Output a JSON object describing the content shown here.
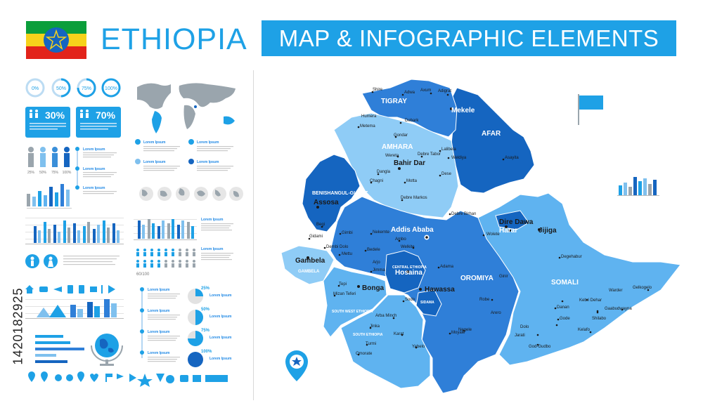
{
  "header": {
    "country_title": "ETHIOPIA",
    "banner_title": "MAP & INFOGRAPHIC ELEMENTS"
  },
  "stock_id": "1420182925",
  "colors": {
    "accent": "#1ea1e6",
    "dark_blue": "#1565c0",
    "mid_blue": "#2f7fd8",
    "light_blue": "#5fb3f0",
    "pale_blue": "#8fccf6",
    "flag_green": "#0b9e3b",
    "flag_yellow": "#f6d21b",
    "flag_red": "#e2231a"
  },
  "infographics": {
    "percent_circles": [
      "0%",
      "50%",
      "75%",
      "100%"
    ],
    "people_stats": [
      {
        "value": "30%"
      },
      {
        "value": "70%"
      }
    ],
    "people_scale": [
      "25%",
      "50%",
      "75%",
      "100%"
    ],
    "lorem_label": "Lorem Ipsum",
    "ratio_label": "60/100",
    "pie_percents": [
      "25%",
      "50%",
      "75%",
      "100%"
    ]
  },
  "map": {
    "regions": [
      "TIGRAY",
      "AFAR",
      "AMHARA",
      "BENISHANGUL-GUMUZ",
      "GAMBELA",
      "OROMIYA",
      "SOMALI",
      "CENTRAL ETHIOPIA",
      "SIDAMA",
      "SOUTH WEST ETHIOPIA",
      "SOUTH ETHIOPIA"
    ],
    "capital": "Addis Ababa",
    "major_cities": [
      "Mekele",
      "Bahir Dar",
      "Dire Dawa",
      "Harar",
      "Bonga",
      "Hawassa",
      "Gambela",
      "Assosa",
      "Hosaina",
      "Jijiga"
    ],
    "cities": [
      "Shire",
      "Adwa",
      "Axum",
      "Adigrat",
      "Humera",
      "Metema",
      "Debark",
      "Gondar",
      "Lalibela",
      "Weldiya",
      "Debre Tabor",
      "Wereta",
      "Dangla",
      "Chagni",
      "Motta",
      "Dese",
      "Debre Markos",
      "Debre Birhan",
      "Asayita",
      "Begi",
      "Dembi Dolo",
      "Gidami",
      "Mettu",
      "Nekemte",
      "Gimbi",
      "Bedele",
      "Jimma",
      "Ambo",
      "Tepi",
      "Mizan Teferi",
      "Sodo",
      "Arba Minch",
      "Jinka",
      "Turmi",
      "Omorate",
      "Karat",
      "Yabelo",
      "Moyale",
      "Negele",
      "Robe",
      "Adama",
      "Welkite",
      "Degehabur",
      "Gode",
      "Kebri Dehar",
      "Warder",
      "Shilabo",
      "Jarati",
      "God-Gudbo",
      "Dolo",
      "Kelafo",
      "Gaabudwayna",
      "Gelkogelo",
      "Danan",
      "Arero",
      "Arjo",
      "Wolete",
      "Ginir"
    ]
  }
}
